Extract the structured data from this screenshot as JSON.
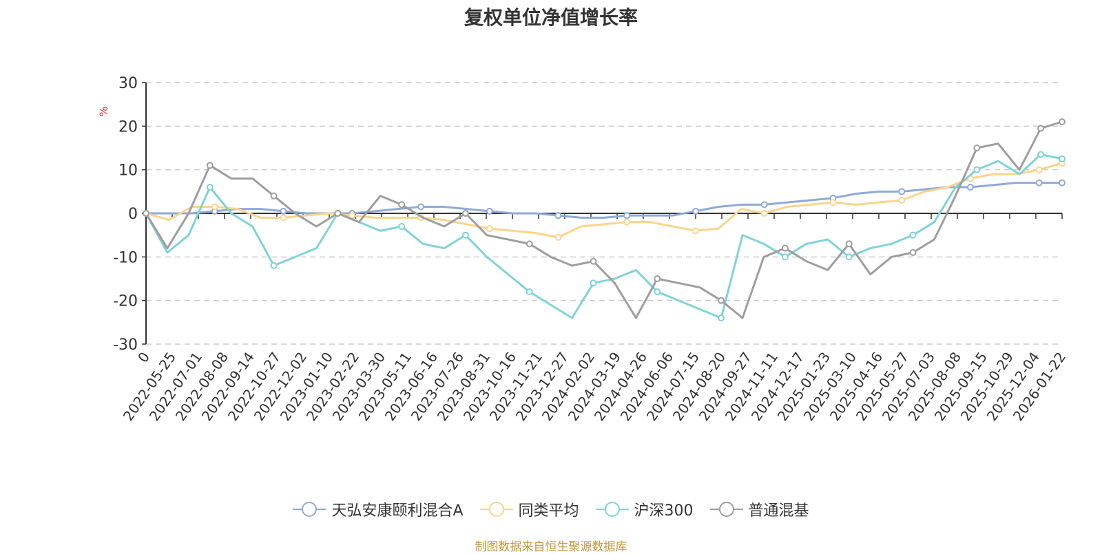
{
  "chart_data": {
    "type": "line",
    "title": "复权单位净值增长率",
    "ylabel": "%",
    "ylim": [
      -30,
      30
    ],
    "yticks": [
      30,
      20,
      10,
      0,
      -10,
      -20,
      -30
    ],
    "x_tick_labels": [
      "0",
      "2022-05-25",
      "2022-07-01",
      "2022-08-08",
      "2022-09-14",
      "2022-10-27",
      "2022-12-02",
      "2023-01-10",
      "2023-02-22",
      "2023-03-30",
      "2023-05-11",
      "2023-06-16",
      "2023-07-26",
      "2023-08-31",
      "2023-10-16",
      "2023-11-21",
      "2023-12-27",
      "2024-02-02",
      "2024-03-19",
      "2024-04-26",
      "2024-06-06",
      "2024-07-15",
      "2024-08-20",
      "2024-09-27",
      "2024-11-11",
      "2024-12-17",
      "2025-01-23",
      "2025-03-10",
      "2025-04-16",
      "2025-05-27",
      "2025-07-03",
      "2025-08-08",
      "2025-09-15",
      "2025-10-29",
      "2025-12-04",
      "2026-01-22"
    ],
    "grid": "horizontal-dashed",
    "legend_position": "bottom",
    "series": [
      {
        "name": "天弘安康颐利混合A",
        "color": "#8fa9d9",
        "values": [
          0,
          0,
          0,
          0.5,
          1,
          1,
          0.5,
          0,
          0,
          0,
          0.5,
          1,
          1.5,
          1.5,
          1,
          0.5,
          0,
          0,
          -0.5,
          -1,
          -1,
          -0.5,
          -0.5,
          -0.5,
          0.5,
          1.5,
          2,
          2,
          2.5,
          3,
          3.5,
          4.5,
          5,
          5,
          5.5,
          6,
          6,
          6.5,
          7,
          7,
          7
        ]
      },
      {
        "name": "同类平均",
        "color": "#fbd48b",
        "values": [
          0,
          -1.5,
          1.5,
          1.5,
          1,
          -1,
          -1,
          -0.5,
          0,
          -0.5,
          -1,
          -1,
          -1,
          -1.5,
          -2.5,
          -3.5,
          -4,
          -4.5,
          -5.5,
          -3,
          -2.5,
          -2,
          -2,
          -3,
          -4,
          -3.5,
          1,
          0,
          1.5,
          2,
          2.5,
          2,
          2.5,
          3,
          5,
          6,
          8,
          9,
          9,
          10,
          11.5
        ]
      },
      {
        "name": "沪深300",
        "color": "#7fd3d8",
        "values": [
          0,
          -9,
          -5,
          6,
          0,
          -3,
          -12,
          -10,
          -8,
          0,
          -2,
          -4,
          -3,
          -7,
          -8,
          -5,
          -10,
          -14,
          -18,
          -21,
          -24,
          -16,
          -15,
          -13,
          -18,
          -20,
          -22,
          -24,
          -5,
          -7,
          -10,
          -7,
          -6,
          -10,
          -8,
          -7,
          -5,
          -2,
          6,
          10,
          12,
          9,
          13.5,
          12.5
        ]
      },
      {
        "name": "普通混基",
        "color": "#9e9e9e",
        "values": [
          0,
          -8,
          0,
          11,
          8,
          8,
          4,
          0,
          -3,
          0,
          -2,
          4,
          2,
          -1,
          -3,
          0,
          -5,
          -6,
          -7,
          -10,
          -12,
          -11,
          -16,
          -24,
          -15,
          -16,
          -17,
          -20,
          -24,
          -10,
          -8,
          -11,
          -13,
          -7,
          -14,
          -10,
          -9,
          -6,
          4,
          15,
          16,
          10,
          19.5,
          21
        ]
      }
    ]
  },
  "legend_items": [
    "天弘安康颐利混合A",
    "同类平均",
    "沪深300",
    "普通混基"
  ],
  "source_note": "制图数据来自恒生聚源数据库",
  "colors": {
    "axis": "#333333",
    "grid": "#cccccc",
    "ylabel": "#e03030",
    "source": "#c8963e"
  }
}
